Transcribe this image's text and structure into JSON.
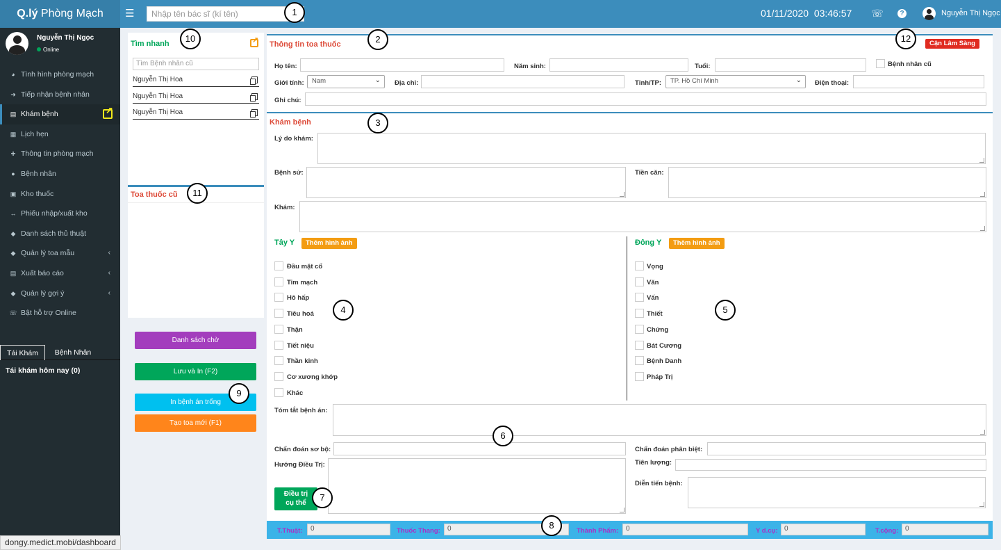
{
  "topbar": {
    "logo_bold": "Q.lý",
    "logo_rest": " Phòng Mạch",
    "search_placeholder": "Nhập tên bác sĩ (kí tên)",
    "date": "01/11/2020",
    "time": "03:46:57",
    "user_name": "Nguyễn Thị Ngọc"
  },
  "sidebar": {
    "user_name": "Nguyễn Thị Ngọc",
    "status": "Online",
    "items": [
      {
        "label": "Tình hình phòng mạch",
        "icon": "dashboard-icon"
      },
      {
        "label": "Tiếp nhận bệnh nhân",
        "icon": "sign-in-icon"
      },
      {
        "label": "Khám bệnh",
        "icon": "clipboard-icon"
      },
      {
        "label": "Lịch hẹn",
        "icon": "calendar-icon"
      },
      {
        "label": "Thông tin phòng mạch",
        "icon": "plus-icon"
      },
      {
        "label": "Bệnh nhân",
        "icon": "user-icon"
      },
      {
        "label": "Kho thuốc",
        "icon": "truck-icon"
      },
      {
        "label": "Phiếu nhập/xuất kho",
        "icon": "arrows-h-icon"
      },
      {
        "label": "Danh sách thủ thuật",
        "icon": "tag-icon"
      },
      {
        "label": "Quản lý toa mẫu",
        "icon": "tag-icon"
      },
      {
        "label": "Xuất báo cáo",
        "icon": "file-icon"
      },
      {
        "label": "Quản lý gợi ý",
        "icon": "tag-icon"
      },
      {
        "label": "Bật hỗ trợ Online",
        "icon": "phone-icon"
      }
    ],
    "tabs": [
      "Tái Khám",
      "Bệnh Nhân"
    ],
    "tab_title": "Tái khám hôm nay (0)"
  },
  "quick": {
    "title": "Tìm nhanh",
    "search_placeholder": "Tìm Bệnh nhân cũ",
    "patients": [
      "Nguyễn Thị Hoa",
      "Nguyễn Thị Hoa",
      "Nguyễn Thị Hoa"
    ],
    "old_rx_title": "Toa thuốc cũ"
  },
  "actions": {
    "waiting_list": "Danh sách chờ",
    "save_print": "Lưu và In (F2)",
    "print_blank": "In bệnh án trống",
    "new_rx": "Tạo toa mới (F1)"
  },
  "rx_info": {
    "title": "Thông tin toa thuốc",
    "clinical_badge": "Cận Lâm Sàng",
    "name_label": "Họ tên:",
    "birth_year_label": "Năm sinh:",
    "age_label": "Tuổi:",
    "old_patient_label": "Bệnh nhân cũ",
    "gender_label": "Giới tính:",
    "gender_value": "Nam",
    "address_label": "Địa chỉ:",
    "province_label": "Tỉnh/TP:",
    "province_value": "TP. Hồ Chí Minh",
    "phone_label": "Điện thoại:",
    "note_label": "Ghi chú:"
  },
  "exam": {
    "title": "Khám bệnh",
    "reason_label": "Lý do khám:",
    "history_label": "Bệnh sử:",
    "past_history_label": "Tiền căn:",
    "exam_label": "Khám:",
    "western_title": "Tây Y",
    "eastern_title": "Đông Y",
    "add_image": "Thêm hình ảnh",
    "western_items": [
      "Đầu mặt cổ",
      "Tim mạch",
      "Hô hấp",
      "Tiêu hoá",
      "Thận",
      "Tiết niệu",
      "Thần kinh",
      "Cơ xương khớp",
      "Khác"
    ],
    "eastern_items": [
      "Vọng",
      "Văn",
      "Vấn",
      "Thiết",
      "Chứng",
      "Bát Cương",
      "Bệnh Danh",
      "Pháp Trị"
    ],
    "summary_label": "Tóm tắt bệnh án:",
    "prelim_dx_label": "Chẩn đoán sơ bộ:",
    "diff_dx_label": "Chẩn đoán phân biệt:",
    "treatment_label": "Hướng Điều Trị:",
    "prognosis_label": "Tiên lượng:",
    "progress_label": "Diễn tiến bệnh:",
    "treat_button_1": "Điều trị",
    "treat_button_2": "cụ thể"
  },
  "totals": [
    {
      "label": "T.Thuật:",
      "value": "0"
    },
    {
      "label": "Thuốc Thang:",
      "value": "0"
    },
    {
      "label": "Thành Phẩm:",
      "value": "0"
    },
    {
      "label": "Y d.cụ:",
      "value": "0"
    },
    {
      "label": "T.cộng:",
      "value": "0"
    }
  ],
  "status_url": "dongy.medict.mobi/dashboard",
  "markers": [
    "1",
    "2",
    "3",
    "4",
    "5",
    "6",
    "7",
    "8",
    "9",
    "10",
    "11",
    "12"
  ]
}
